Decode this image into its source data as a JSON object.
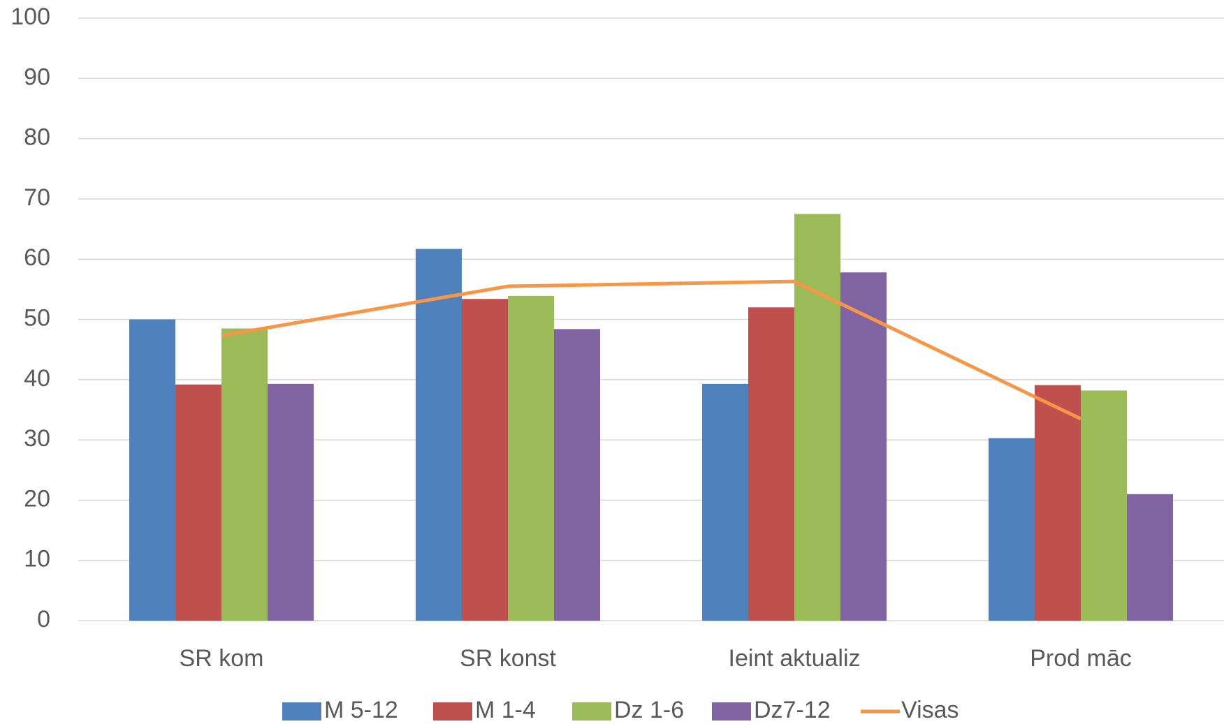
{
  "chart_data": {
    "type": "bar",
    "categories": [
      "SR kom",
      "SR konst",
      "Ieint aktualiz",
      "Prod māc"
    ],
    "series": [
      {
        "name": "M 5-12",
        "color": "#4f81bd",
        "values": [
          50,
          61.7,
          39.3,
          30.3
        ]
      },
      {
        "name": "M 1-4",
        "color": "#c0504d",
        "values": [
          39.2,
          53.4,
          52,
          39.1
        ]
      },
      {
        "name": "Dz 1-6",
        "color": "#9bbb59",
        "values": [
          48.5,
          53.9,
          67.5,
          38.2
        ]
      },
      {
        "name": "Dz7-12",
        "color": "#8064a2",
        "values": [
          39.3,
          48.4,
          57.8,
          21
        ]
      },
      {
        "name": "Visas",
        "color": "#f79646",
        "type": "line",
        "values": [
          47.3,
          55.5,
          56.3,
          33.5
        ]
      }
    ],
    "ylim": [
      0,
      100
    ],
    "yticks": [
      0,
      10,
      20,
      30,
      40,
      50,
      60,
      70,
      80,
      90,
      100
    ],
    "grid": true,
    "legend": "bottom"
  }
}
